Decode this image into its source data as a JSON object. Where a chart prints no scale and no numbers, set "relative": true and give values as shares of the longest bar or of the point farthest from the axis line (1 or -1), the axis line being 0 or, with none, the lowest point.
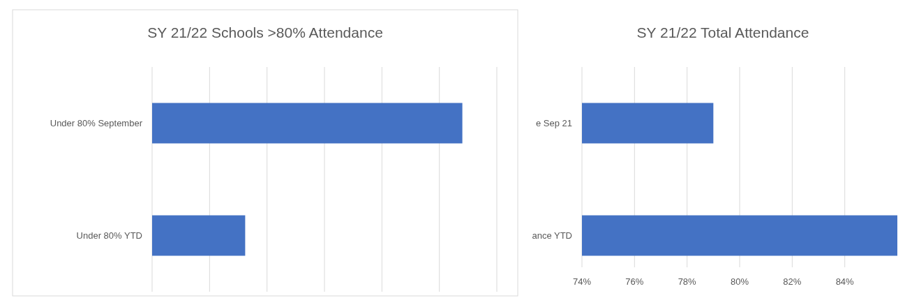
{
  "chart_data": [
    {
      "type": "bar",
      "orientation": "horizontal",
      "title": "SY 21/22 Schools >80% Attendance",
      "categories": [
        "Under 80% September",
        "Under 80% YTD"
      ],
      "values": [
        1,
        0.3
      ],
      "color": "#4472c4",
      "relative": true,
      "grid": "x"
    },
    {
      "type": "bar",
      "orientation": "horizontal",
      "title": "SY 21/22 Total Attendance",
      "categories": [
        "e Sep 21",
        "ance YTD"
      ],
      "values": [
        79,
        86
      ],
      "color": "#4472c4",
      "xlim": [
        74,
        86
      ],
      "xticks": [
        {
          "value": 74,
          "label": "74%"
        },
        {
          "value": 76,
          "label": "76%"
        },
        {
          "value": 78,
          "label": "78%"
        },
        {
          "value": 80,
          "label": "80%"
        },
        {
          "value": 82,
          "label": "82%"
        },
        {
          "value": 84,
          "label": "84%"
        }
      ],
      "grid": "x"
    }
  ]
}
